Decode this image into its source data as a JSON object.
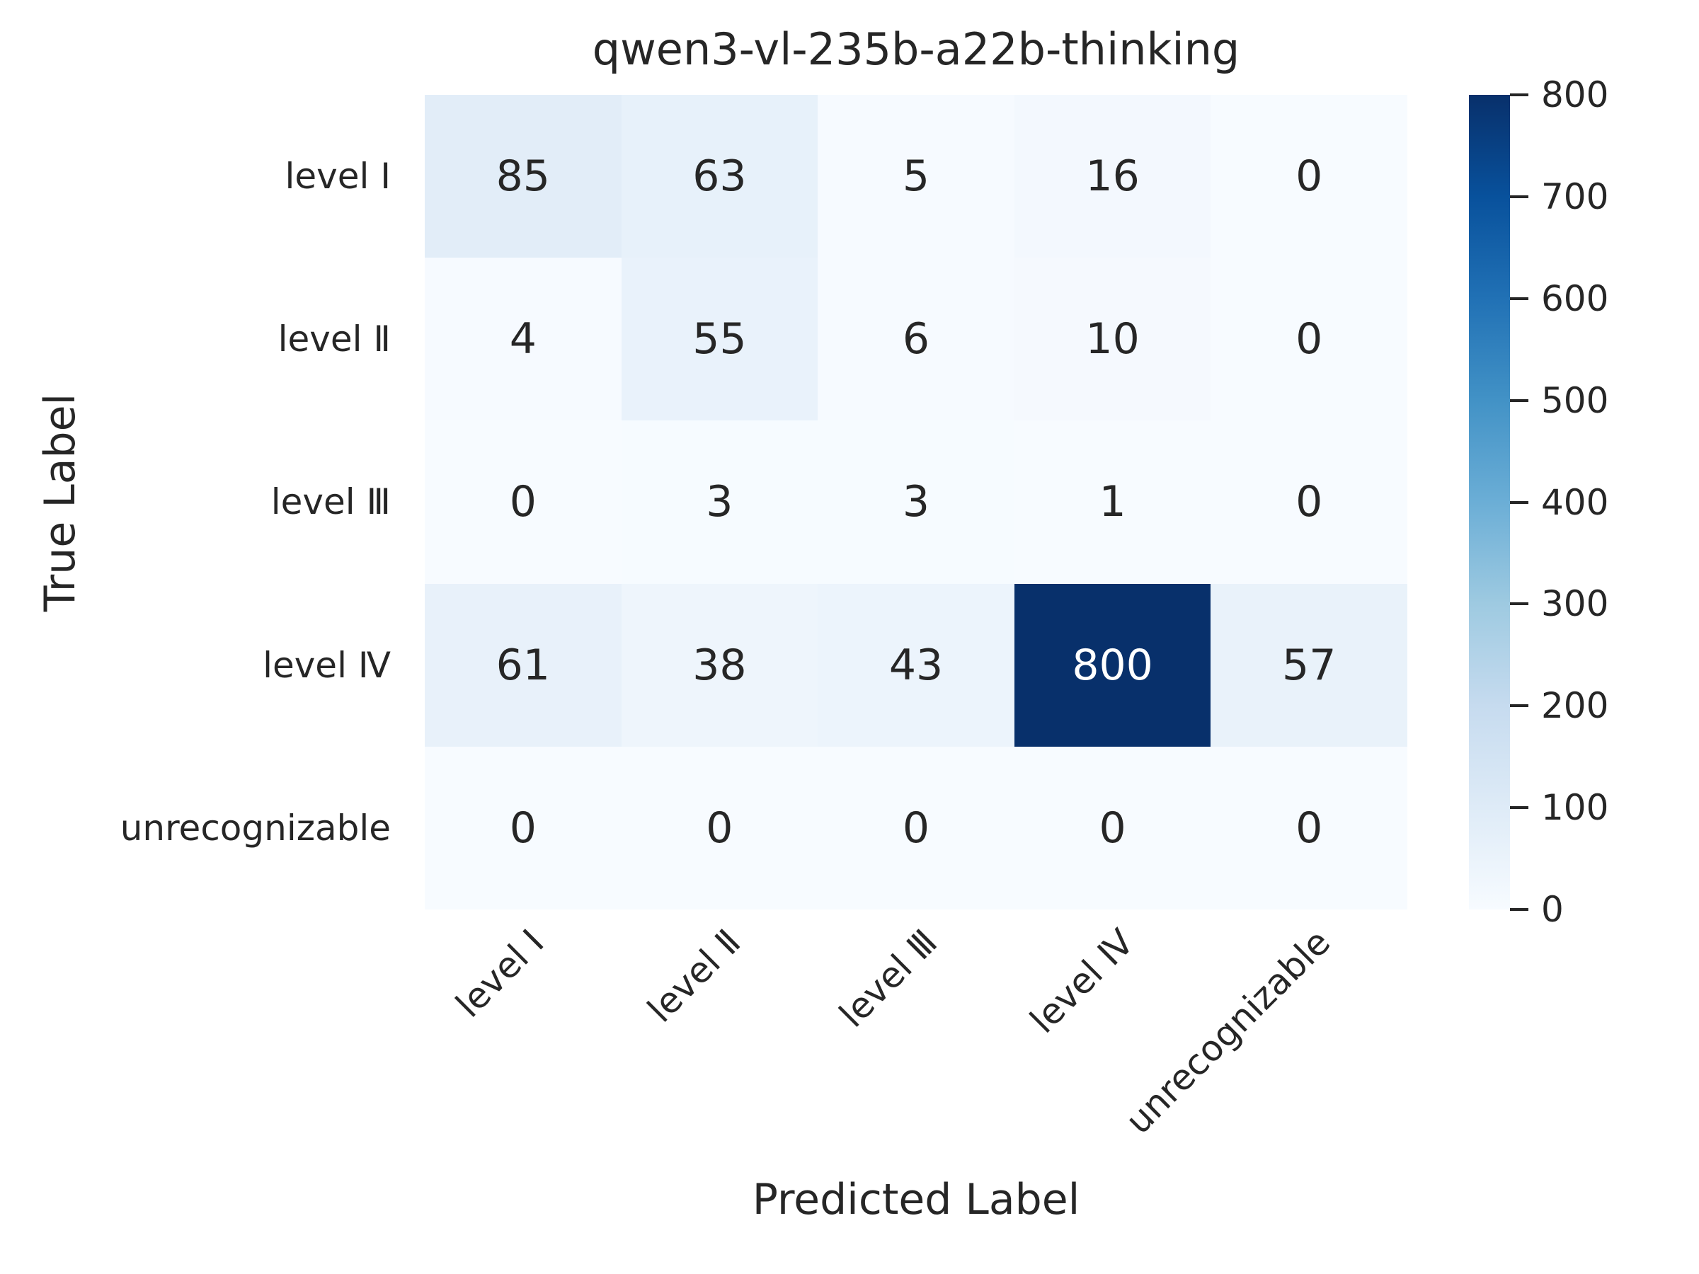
{
  "chart_data": {
    "type": "heatmap",
    "title": "qwen3-vl-235b-a22b-thinking",
    "xlabel": "Predicted Label",
    "ylabel": "True Label",
    "categories": [
      "level Ⅰ",
      "level Ⅱ",
      "level Ⅲ",
      "level Ⅳ",
      "unrecognizable"
    ],
    "rows": [
      [
        85,
        63,
        5,
        16,
        0
      ],
      [
        4,
        55,
        6,
        10,
        0
      ],
      [
        0,
        3,
        3,
        1,
        0
      ],
      [
        61,
        38,
        43,
        800,
        57
      ],
      [
        0,
        0,
        0,
        0,
        0
      ]
    ],
    "vmin": 0,
    "vmax": 800,
    "colorbar_ticks": [
      0,
      100,
      200,
      300,
      400,
      500,
      600,
      700,
      800
    ],
    "colormap": "Blues",
    "colormap_stops": [
      "#f7fbff",
      "#deebf7",
      "#c6dbef",
      "#9ecae1",
      "#6baed6",
      "#4292c6",
      "#2171b5",
      "#08519c",
      "#08306b"
    ],
    "colors": {
      "background": "#ffffff",
      "text": "#262626",
      "annotation_light": "#ffffff"
    },
    "legend_position": "right-colorbar",
    "grid": false
  }
}
